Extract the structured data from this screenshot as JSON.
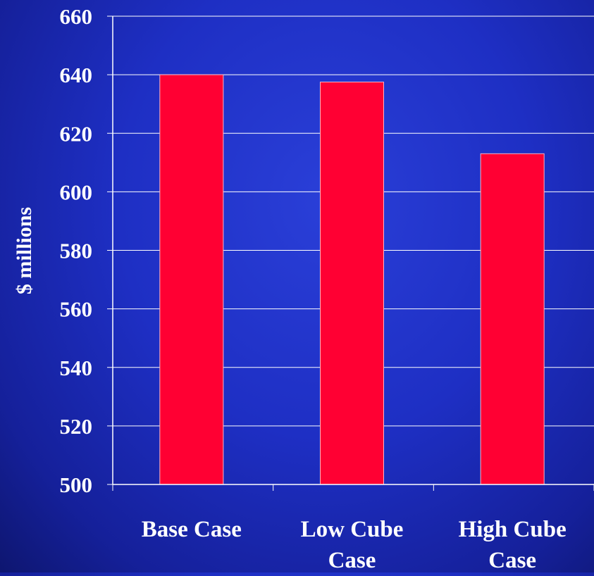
{
  "colors": {
    "background": "#1e2fc4",
    "bar": "#ff0033",
    "grid": "#ffffff",
    "text": "#ffffff"
  },
  "chart_data": {
    "type": "bar",
    "title": "",
    "xlabel": "",
    "ylabel": "$ millions",
    "categories": [
      [
        "Base Case"
      ],
      [
        "Low Cube",
        "Case"
      ],
      [
        "High Cube",
        "Case"
      ]
    ],
    "values": [
      640,
      637.5,
      613
    ],
    "ylim": [
      500,
      660
    ],
    "yticks": [
      "660",
      "640",
      "620",
      "600",
      "580",
      "560",
      "540",
      "520",
      "500"
    ],
    "grid": true,
    "legend": "none"
  }
}
